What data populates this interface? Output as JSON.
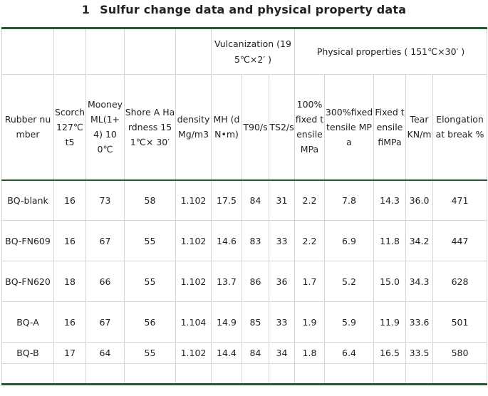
{
  "title": {
    "number": "1",
    "text": "Sulfur change data and physical property data"
  },
  "group_headers": {
    "vulcanization": "Vulcanization (195℃×2′ )",
    "physical": "Physical properties ( 151℃×30′ )"
  },
  "columns": [
    "Rubber number",
    "Scorch 127℃ t5",
    "Mooney ML(1+4) 100℃",
    "Shore A Hardness 151℃× 30′",
    "density Mg/m3",
    "MH (dN•m)",
    "T90/s",
    "TS2/s",
    "100% fixed tensile MPa",
    "300%fixed tensile MPa",
    "Fixed tensile fiMPa",
    "Tear KN/m",
    "Elongation at break %"
  ],
  "rows": [
    [
      "BQ-blank",
      "16",
      "73",
      "58",
      "1.102",
      "17.5",
      "84",
      "31",
      "2.2",
      "7.8",
      "14.3",
      "36.0",
      "471"
    ],
    [
      "BQ-FN609",
      "16",
      "67",
      "55",
      "1.102",
      "14.6",
      "83",
      "33",
      "2.2",
      "6.9",
      "11.8",
      "34.2",
      "447"
    ],
    [
      "BQ-FN620",
      "18",
      "66",
      "55",
      "1.102",
      "13.7",
      "86",
      "36",
      "1.7",
      "5.2",
      "15.0",
      "34.3",
      "628"
    ],
    [
      "BQ-A",
      "16",
      "67",
      "56",
      "1.104",
      "14.9",
      "85",
      "33",
      "1.9",
      "5.9",
      "11.9",
      "33.6",
      "501"
    ],
    [
      "BQ-B",
      "17",
      "64",
      "55",
      "1.102",
      "14.4",
      "84",
      "34",
      "1.8",
      "6.4",
      "16.5",
      "33.5",
      "580"
    ]
  ]
}
